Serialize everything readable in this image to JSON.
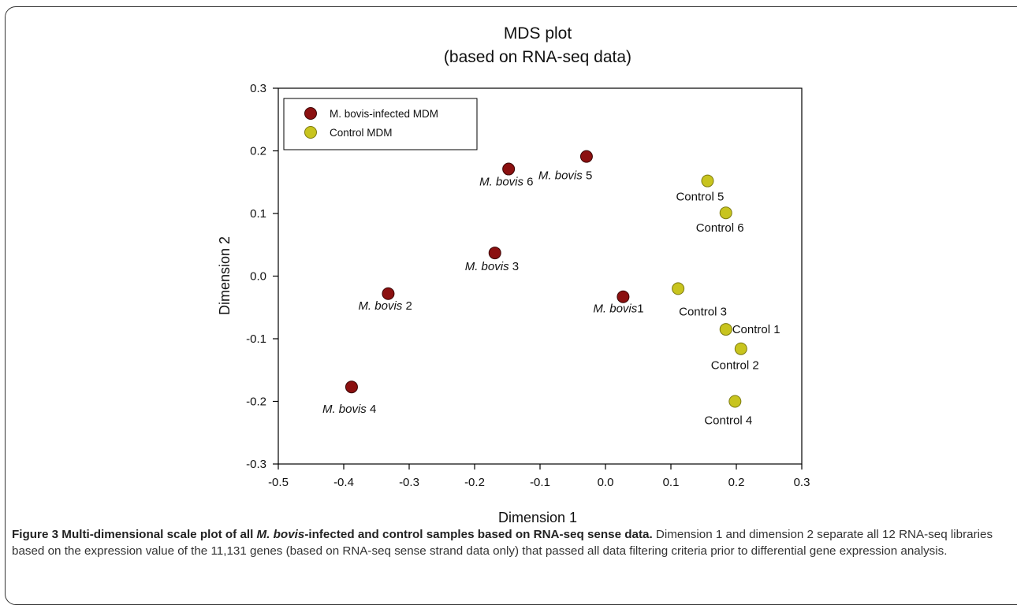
{
  "chart_data": {
    "type": "scatter",
    "title": "MDS plot",
    "subtitle": "(based on RNA-seq data)",
    "xlabel": "Dimension 1",
    "ylabel": "Dimension 2",
    "xlim": [
      -0.5,
      0.3
    ],
    "ylim": [
      -0.3,
      0.3
    ],
    "xticks": [
      "-0.5",
      "-0.4",
      "-0.3",
      "-0.2",
      "-0.1",
      "0.0",
      "0.1",
      "0.2",
      "0.3"
    ],
    "yticks": [
      "0.3",
      "0.2",
      "0.1",
      "0.0",
      "-0.1",
      "-0.2",
      "-0.3"
    ],
    "grid": false,
    "legend_position": "top-left",
    "series": [
      {
        "name": "M. bovis-infected MDM",
        "color": "#8b1010",
        "points": [
          {
            "x": 0.027,
            "y": -0.033,
            "prefix": "M. bovis",
            "suffix": "1"
          },
          {
            "x": -0.332,
            "y": -0.028,
            "prefix": "M. bovis",
            "suffix": " 2"
          },
          {
            "x": -0.169,
            "y": 0.037,
            "prefix": "M. bovis",
            "suffix": " 3"
          },
          {
            "x": -0.388,
            "y": -0.177,
            "prefix": "M. bovis",
            "suffix": " 4"
          },
          {
            "x": -0.029,
            "y": 0.191,
            "prefix": "M. bovis",
            "suffix": " 5"
          },
          {
            "x": -0.148,
            "y": 0.171,
            "prefix": "M. bovis",
            "suffix": " 6"
          }
        ]
      },
      {
        "name": "Control MDM",
        "color": "#c8c41e",
        "points": [
          {
            "x": 0.184,
            "y": -0.085,
            "label": "Control 1"
          },
          {
            "x": 0.207,
            "y": -0.116,
            "label": "Control 2"
          },
          {
            "x": 0.111,
            "y": -0.02,
            "label": "Control 3"
          },
          {
            "x": 0.198,
            "y": -0.2,
            "label": "Control 4"
          },
          {
            "x": 0.156,
            "y": 0.152,
            "label": "Control 5"
          },
          {
            "x": 0.184,
            "y": 0.101,
            "label": "Control 6"
          }
        ]
      }
    ]
  },
  "caption": {
    "title_pre": "Figure 3 Multi-dimensional scale plot of all ",
    "title_italic": "M. bovis",
    "title_post": "-infected and control samples based on RNA-seq sense data.",
    "body": " Dimension 1 and dimension 2 separate all 12 RNA-seq libraries based on the expression value of the 11,131 genes (based on RNA-seq sense strand data only) that passed all data filtering criteria prior to differential gene expression analysis."
  }
}
